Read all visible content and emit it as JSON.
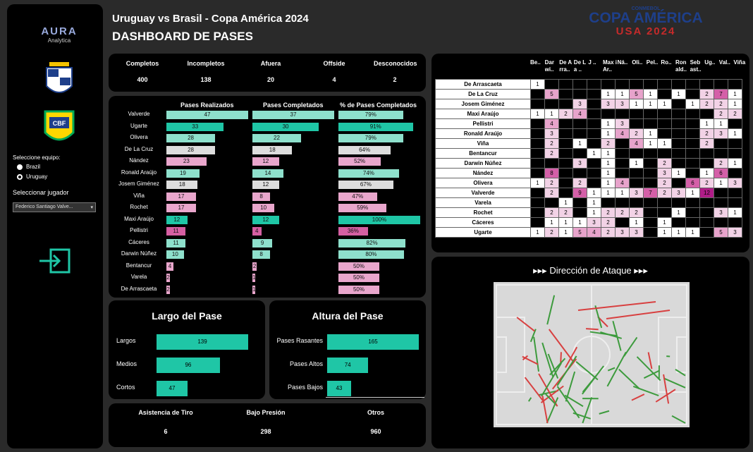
{
  "sidebar": {
    "logo_main": "AURA",
    "logo_sub": "Analytica",
    "team_label": "Seleccione equipo:",
    "teams": [
      "Brazil",
      "Uruguay"
    ],
    "player_label": "Seleccionar jugador",
    "player_value": "Federico Santiago Valve..."
  },
  "header": {
    "title": "Uruguay vs Brasil - Copa América 2024",
    "subtitle": "DASHBOARD DE PASES",
    "brand_top": "CONMEBOL",
    "brand_mid": "COPA AMÉRICA",
    "brand_bottom": "USA 2024"
  },
  "kpis": [
    {
      "label": "Completos",
      "value": "400"
    },
    {
      "label": "Incompletos",
      "value": "138"
    },
    {
      "label": "Afuera",
      "value": "20"
    },
    {
      "label": "Offside",
      "value": "4"
    },
    {
      "label": "Desconocidos",
      "value": "2"
    }
  ],
  "passes": {
    "headers": [
      "Pases Realizados",
      "Pases Completados",
      "% de Pases Completados"
    ],
    "players": [
      {
        "name": "Valverde",
        "made": "47",
        "completed": "37",
        "pct": "79%"
      },
      {
        "name": "Ugarte",
        "made": "33",
        "completed": "30",
        "pct": "91%"
      },
      {
        "name": "Olivera",
        "made": "28",
        "completed": "22",
        "pct": "79%"
      },
      {
        "name": "De La Cruz",
        "made": "28",
        "completed": "18",
        "pct": "64%"
      },
      {
        "name": "Nández",
        "made": "23",
        "completed": "12",
        "pct": "52%"
      },
      {
        "name": "Ronald Araújo",
        "made": "19",
        "completed": "14",
        "pct": "74%"
      },
      {
        "name": "Josem Giménez",
        "made": "18",
        "completed": "12",
        "pct": "67%"
      },
      {
        "name": "Viña",
        "made": "17",
        "completed": "8",
        "pct": "47%"
      },
      {
        "name": "Rochet",
        "made": "17",
        "completed": "10",
        "pct": "59%"
      },
      {
        "name": "Maxi Araújo",
        "made": "12",
        "completed": "12",
        "pct": "100%"
      },
      {
        "name": "Pellistri",
        "made": "11",
        "completed": "4",
        "pct": "36%"
      },
      {
        "name": "Cáceres",
        "made": "11",
        "completed": "9",
        "pct": "82%"
      },
      {
        "name": "Darwin Núñez",
        "made": "10",
        "completed": "8",
        "pct": "80%"
      },
      {
        "name": "Bentancur",
        "made": "4",
        "completed": "2",
        "pct": "50%"
      },
      {
        "name": "Varela",
        "made": "2",
        "completed": "1",
        "pct": "50%"
      },
      {
        "name": "De Arrascaeta",
        "made": "2",
        "completed": "1",
        "pct": "50%"
      }
    ]
  },
  "largo": {
    "title": "Largo del Pase",
    "rows": [
      {
        "label": "Largos",
        "value": "139"
      },
      {
        "label": "Medios",
        "value": "96"
      },
      {
        "label": "Cortos",
        "value": "47"
      }
    ]
  },
  "altura": {
    "title": "Altura del Pase",
    "rows": [
      {
        "label": "Pases Rasantes",
        "value": "165"
      },
      {
        "label": "Pases Altos",
        "value": "74"
      },
      {
        "label": "Pases Bajos",
        "value": "43"
      }
    ]
  },
  "bottom": [
    {
      "label": "Asistencia de Tiro",
      "value": "6"
    },
    {
      "label": "Bajo Presión",
      "value": "298"
    },
    {
      "label": "Otros",
      "value": "960"
    }
  ],
  "matrix": {
    "cols": [
      "Be..",
      "Dar wi..",
      "De A rra..",
      "De La ..",
      "J ..",
      "Max i Ar..",
      "Ná..",
      "Oli..",
      "Pel..",
      "Ro..",
      "Ron ald..",
      "Seb ast..",
      "Ug..",
      "Val..",
      "Viña"
    ],
    "rows": [
      {
        "name": "De Arrascaeta",
        "v": [
          "1",
          "",
          "",
          "",
          "",
          "",
          "",
          "",
          "",
          "",
          "",
          "",
          "",
          "",
          ""
        ]
      },
      {
        "name": "De La Cruz",
        "v": [
          "",
          "5",
          "",
          "",
          "",
          "1",
          "1",
          "5",
          "1",
          "",
          "1",
          "",
          "2",
          "7",
          "1"
        ]
      },
      {
        "name": "Josem Giménez",
        "v": [
          "",
          "",
          "",
          "3",
          "",
          "3",
          "3",
          "1",
          "1",
          "1",
          "",
          "1",
          "2",
          "2",
          "1"
        ]
      },
      {
        "name": "Maxi Araújo",
        "v": [
          "1",
          "1",
          "2",
          "4",
          "",
          "",
          "",
          "",
          "",
          "",
          "",
          "",
          "",
          "2",
          "2"
        ]
      },
      {
        "name": "Pellistri",
        "v": [
          "",
          "4",
          "",
          "",
          "",
          "1",
          "3",
          "",
          "",
          "",
          "",
          "",
          "1",
          "1",
          ""
        ]
      },
      {
        "name": "Ronald Araújo",
        "v": [
          "",
          "3",
          "",
          "",
          "",
          "1",
          "4",
          "2",
          "1",
          "",
          "",
          "",
          "2",
          "3",
          "1"
        ]
      },
      {
        "name": "Viña",
        "v": [
          "",
          "2",
          "",
          "1",
          "",
          "2",
          "",
          "4",
          "1",
          "1",
          "",
          "",
          "2",
          "",
          ""
        ]
      },
      {
        "name": "Bentancur",
        "v": [
          "",
          "2",
          "",
          "",
          "1",
          "1",
          "",
          "",
          "",
          "",
          "",
          "",
          "",
          "",
          ""
        ]
      },
      {
        "name": "Darwin Núñez",
        "v": [
          "",
          "",
          "",
          "3",
          "",
          "1",
          "",
          "1",
          "",
          "2",
          "",
          "",
          "",
          "2",
          "1"
        ]
      },
      {
        "name": "Nández",
        "v": [
          "",
          "8",
          "",
          "",
          "",
          "1",
          "",
          "",
          "",
          "3",
          "1",
          "",
          "1",
          "6",
          ""
        ]
      },
      {
        "name": "Olivera",
        "v": [
          "1",
          "2",
          "",
          "2",
          "",
          "1",
          "4",
          "",
          "",
          "2",
          "",
          "6",
          "2",
          "1",
          "3"
        ]
      },
      {
        "name": "Valverde",
        "v": [
          "",
          "2",
          "",
          "9",
          "1",
          "1",
          "1",
          "3",
          "7",
          "2",
          "3",
          "1",
          "12",
          "",
          ""
        ]
      },
      {
        "name": "Varela",
        "v": [
          "",
          "",
          "1",
          "",
          "1",
          "",
          "",
          "",
          "",
          "",
          "",
          "",
          "",
          "",
          ""
        ]
      },
      {
        "name": "Rochet",
        "v": [
          "",
          "2",
          "2",
          "",
          "1",
          "2",
          "2",
          "2",
          "",
          "",
          "1",
          "",
          "",
          "3",
          "1"
        ]
      },
      {
        "name": "Cáceres",
        "v": [
          "",
          "1",
          "1",
          "1",
          "3",
          "2",
          "",
          "1",
          "",
          "1",
          "",
          "",
          "",
          "",
          ""
        ]
      },
      {
        "name": "Ugarte",
        "v": [
          "1",
          "2",
          "1",
          "5",
          "4",
          "2",
          "3",
          "3",
          "",
          "1",
          "1",
          "1",
          "",
          "5",
          "3"
        ]
      }
    ]
  },
  "attack": {
    "title": "▸▸▸ Dirección de Ataque ▸▸▸"
  }
}
